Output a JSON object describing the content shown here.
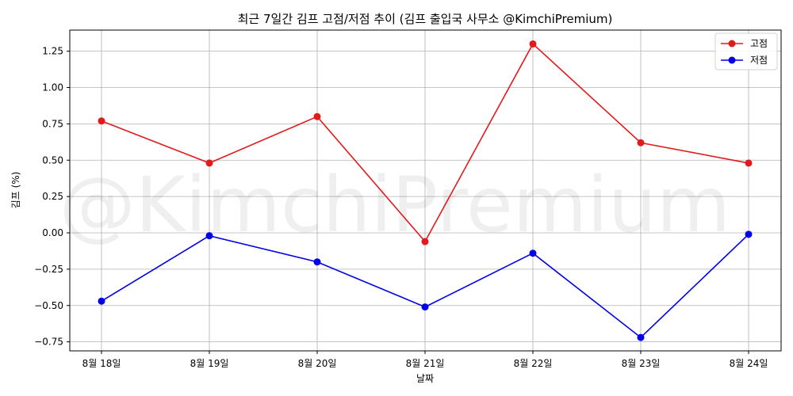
{
  "chart_data": {
    "type": "line",
    "title": "최근 7일간 김프 고점/저점 추이 (김프 출입국 사무소 @KimchiPremium)",
    "xlabel": "날짜",
    "ylabel": "김프 (%)",
    "categories": [
      "8월 18일",
      "8월 19일",
      "8월 20일",
      "8월 21일",
      "8월 22일",
      "8월 23일",
      "8월 24일"
    ],
    "series": [
      {
        "name": "고점",
        "color": "#e31a1c",
        "values": [
          0.77,
          0.48,
          0.8,
          -0.06,
          1.3,
          0.62,
          0.48
        ]
      },
      {
        "name": "저점",
        "color": "#0000e6",
        "values": [
          -0.47,
          -0.02,
          -0.2,
          -0.51,
          -0.14,
          -0.72,
          -0.01
        ]
      }
    ],
    "yticks": [
      {
        "value": 1.25,
        "label": "1.25"
      },
      {
        "value": 1.0,
        "label": "1.00"
      },
      {
        "value": 0.75,
        "label": "0.75"
      },
      {
        "value": 0.5,
        "label": "0.50"
      },
      {
        "value": 0.25,
        "label": "0.25"
      },
      {
        "value": 0.0,
        "label": "0.00"
      },
      {
        "value": -0.25,
        "label": "−0.25"
      },
      {
        "value": -0.5,
        "label": "−0.50"
      },
      {
        "value": -0.75,
        "label": "−0.75"
      }
    ],
    "ylim": [
      -0.82,
      1.4
    ],
    "grid": true,
    "legend": "top-right",
    "watermark": "@KimchiPremium"
  }
}
